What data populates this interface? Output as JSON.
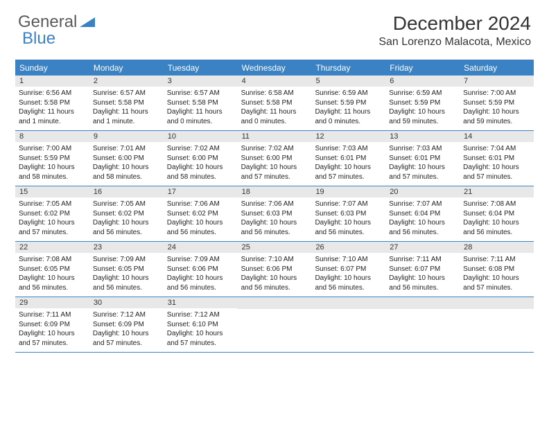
{
  "logo": {
    "text1": "General",
    "text2": "Blue"
  },
  "title": "December 2024",
  "location": "San Lorenzo Malacota, Mexico",
  "colors": {
    "header_bg": "#3b82c4",
    "header_text": "#ffffff",
    "daynum_bg": "#e8e8e8",
    "text": "#222222",
    "border": "#3b82c4"
  },
  "weekdays": [
    "Sunday",
    "Monday",
    "Tuesday",
    "Wednesday",
    "Thursday",
    "Friday",
    "Saturday"
  ],
  "weeks": [
    [
      {
        "num": "1",
        "sunrise": "6:56 AM",
        "sunset": "5:58 PM",
        "daylight": "11 hours and 1 minute."
      },
      {
        "num": "2",
        "sunrise": "6:57 AM",
        "sunset": "5:58 PM",
        "daylight": "11 hours and 1 minute."
      },
      {
        "num": "3",
        "sunrise": "6:57 AM",
        "sunset": "5:58 PM",
        "daylight": "11 hours and 0 minutes."
      },
      {
        "num": "4",
        "sunrise": "6:58 AM",
        "sunset": "5:58 PM",
        "daylight": "11 hours and 0 minutes."
      },
      {
        "num": "5",
        "sunrise": "6:59 AM",
        "sunset": "5:59 PM",
        "daylight": "11 hours and 0 minutes."
      },
      {
        "num": "6",
        "sunrise": "6:59 AM",
        "sunset": "5:59 PM",
        "daylight": "10 hours and 59 minutes."
      },
      {
        "num": "7",
        "sunrise": "7:00 AM",
        "sunset": "5:59 PM",
        "daylight": "10 hours and 59 minutes."
      }
    ],
    [
      {
        "num": "8",
        "sunrise": "7:00 AM",
        "sunset": "5:59 PM",
        "daylight": "10 hours and 58 minutes."
      },
      {
        "num": "9",
        "sunrise": "7:01 AM",
        "sunset": "6:00 PM",
        "daylight": "10 hours and 58 minutes."
      },
      {
        "num": "10",
        "sunrise": "7:02 AM",
        "sunset": "6:00 PM",
        "daylight": "10 hours and 58 minutes."
      },
      {
        "num": "11",
        "sunrise": "7:02 AM",
        "sunset": "6:00 PM",
        "daylight": "10 hours and 57 minutes."
      },
      {
        "num": "12",
        "sunrise": "7:03 AM",
        "sunset": "6:01 PM",
        "daylight": "10 hours and 57 minutes."
      },
      {
        "num": "13",
        "sunrise": "7:03 AM",
        "sunset": "6:01 PM",
        "daylight": "10 hours and 57 minutes."
      },
      {
        "num": "14",
        "sunrise": "7:04 AM",
        "sunset": "6:01 PM",
        "daylight": "10 hours and 57 minutes."
      }
    ],
    [
      {
        "num": "15",
        "sunrise": "7:05 AM",
        "sunset": "6:02 PM",
        "daylight": "10 hours and 57 minutes."
      },
      {
        "num": "16",
        "sunrise": "7:05 AM",
        "sunset": "6:02 PM",
        "daylight": "10 hours and 56 minutes."
      },
      {
        "num": "17",
        "sunrise": "7:06 AM",
        "sunset": "6:02 PM",
        "daylight": "10 hours and 56 minutes."
      },
      {
        "num": "18",
        "sunrise": "7:06 AM",
        "sunset": "6:03 PM",
        "daylight": "10 hours and 56 minutes."
      },
      {
        "num": "19",
        "sunrise": "7:07 AM",
        "sunset": "6:03 PM",
        "daylight": "10 hours and 56 minutes."
      },
      {
        "num": "20",
        "sunrise": "7:07 AM",
        "sunset": "6:04 PM",
        "daylight": "10 hours and 56 minutes."
      },
      {
        "num": "21",
        "sunrise": "7:08 AM",
        "sunset": "6:04 PM",
        "daylight": "10 hours and 56 minutes."
      }
    ],
    [
      {
        "num": "22",
        "sunrise": "7:08 AM",
        "sunset": "6:05 PM",
        "daylight": "10 hours and 56 minutes."
      },
      {
        "num": "23",
        "sunrise": "7:09 AM",
        "sunset": "6:05 PM",
        "daylight": "10 hours and 56 minutes."
      },
      {
        "num": "24",
        "sunrise": "7:09 AM",
        "sunset": "6:06 PM",
        "daylight": "10 hours and 56 minutes."
      },
      {
        "num": "25",
        "sunrise": "7:10 AM",
        "sunset": "6:06 PM",
        "daylight": "10 hours and 56 minutes."
      },
      {
        "num": "26",
        "sunrise": "7:10 AM",
        "sunset": "6:07 PM",
        "daylight": "10 hours and 56 minutes."
      },
      {
        "num": "27",
        "sunrise": "7:11 AM",
        "sunset": "6:07 PM",
        "daylight": "10 hours and 56 minutes."
      },
      {
        "num": "28",
        "sunrise": "7:11 AM",
        "sunset": "6:08 PM",
        "daylight": "10 hours and 57 minutes."
      }
    ],
    [
      {
        "num": "29",
        "sunrise": "7:11 AM",
        "sunset": "6:09 PM",
        "daylight": "10 hours and 57 minutes."
      },
      {
        "num": "30",
        "sunrise": "7:12 AM",
        "sunset": "6:09 PM",
        "daylight": "10 hours and 57 minutes."
      },
      {
        "num": "31",
        "sunrise": "7:12 AM",
        "sunset": "6:10 PM",
        "daylight": "10 hours and 57 minutes."
      },
      null,
      null,
      null,
      null
    ]
  ]
}
